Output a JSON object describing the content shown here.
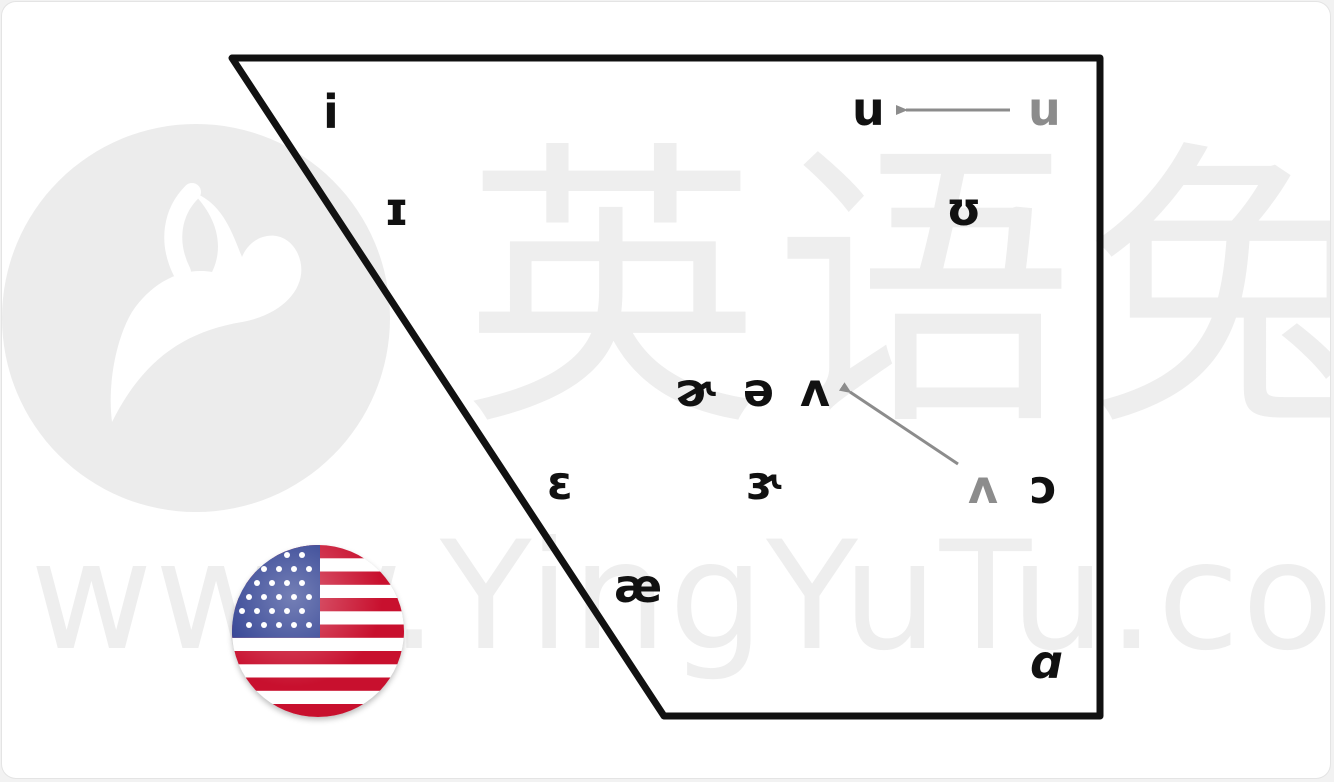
{
  "watermark": {
    "brand_cjk": "英语兔",
    "url": "www.YingYuTu.com",
    "logo_icon": "rabbit-icon"
  },
  "vowel_chart": {
    "symbols": {
      "i": "i",
      "u": "u",
      "u_gray": "u",
      "small_cap_i": "ɪ",
      "upsilon": "ʊ",
      "schwar": "ɚ",
      "schwa": "ə",
      "wedge": "ʌ",
      "epsilon": "ɛ",
      "reversed_epsilon_hook": "ɝ",
      "wedge_gray": "ʌ",
      "open_o": "ɔ",
      "ae": "æ",
      "script_a": "ɑ"
    },
    "colors": {
      "outline": "#111111",
      "arrow": "#8c8c8c",
      "symbol": "#111111",
      "gray_symbol": "#8c8c8c"
    }
  },
  "flag": {
    "icon": "us-flag-icon"
  }
}
